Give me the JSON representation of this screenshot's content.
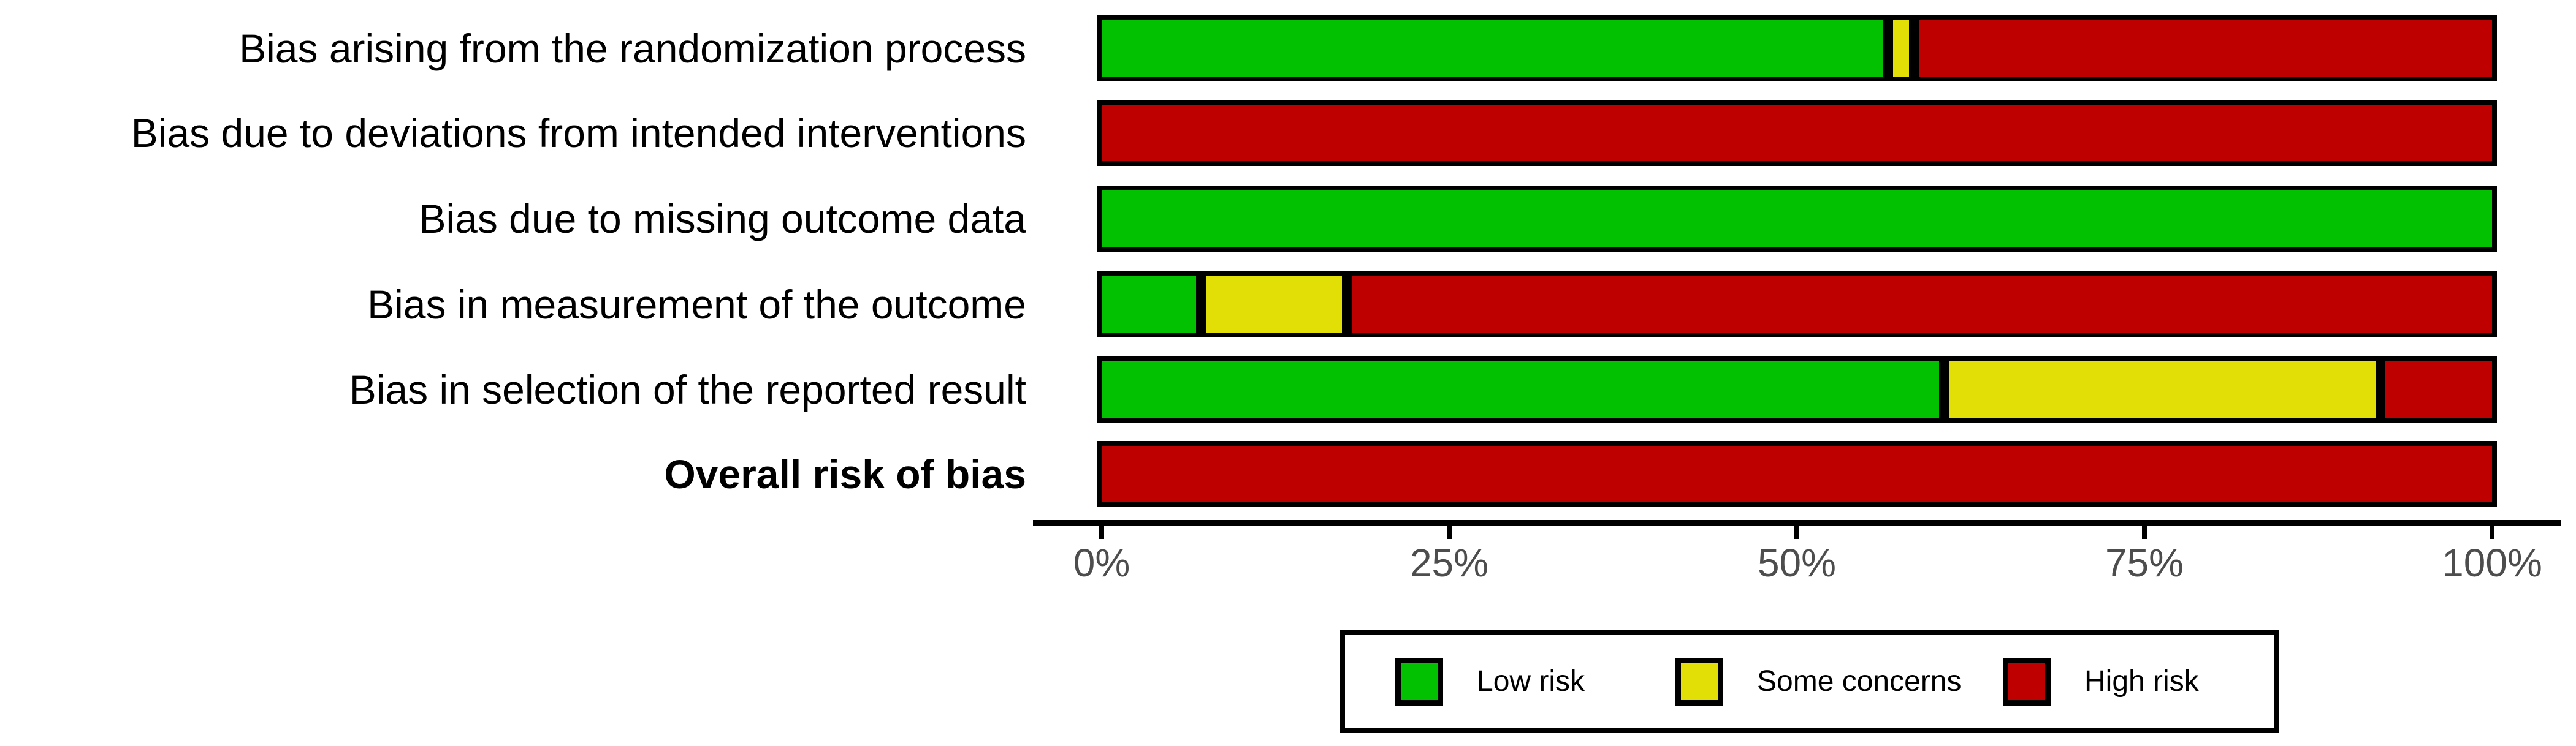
{
  "figure": {
    "background_color": "#ffffff",
    "bar_border_color": "#000000",
    "axis_color": "#000000",
    "axis_text_color": "#4d4d4d"
  },
  "chart_data": {
    "type": "bar",
    "subtype": "horizontal-stacked-percentage",
    "title": "",
    "xlabel": "",
    "ylabel": "",
    "x_range": [
      0,
      100
    ],
    "x_ticks": [
      {
        "label": "0%",
        "value": 0
      },
      {
        "label": "25%",
        "value": 25
      },
      {
        "label": "50%",
        "value": 50
      },
      {
        "label": "75%",
        "value": 75
      },
      {
        "label": "100%",
        "value": 100
      }
    ],
    "categories": [
      {
        "label": "Bias arising from the randomization process",
        "bold": false
      },
      {
        "label": "Bias due to deviations from intended interventions",
        "bold": false
      },
      {
        "label": "Bias due to missing outcome data",
        "bold": false
      },
      {
        "label": "Bias in measurement of the outcome",
        "bold": false
      },
      {
        "label": "Bias in selection of the reported result",
        "bold": false
      },
      {
        "label": "Overall risk of bias",
        "bold": true
      }
    ],
    "series": [
      {
        "name": "Low risk",
        "color": "#02C100",
        "values": [
          57.0,
          0,
          100,
          6.9,
          61.1,
          0
        ]
      },
      {
        "name": "Some concerns",
        "color": "#E2DF07",
        "values": [
          1.2,
          0,
          0,
          9.9,
          31.1,
          0
        ]
      },
      {
        "name": "High risk",
        "color": "#BF0000",
        "values": [
          41.8,
          100,
          0,
          83.2,
          7.8,
          100
        ]
      }
    ],
    "legend_position": "bottom",
    "grid": false
  },
  "legend": {
    "items": [
      {
        "label": "Low risk",
        "color": "#02C100"
      },
      {
        "label": "Some concerns",
        "color": "#E2DF07"
      },
      {
        "label": "High risk",
        "color": "#BF0000"
      }
    ]
  },
  "layout_note": "risk-of-bias summary barplot"
}
